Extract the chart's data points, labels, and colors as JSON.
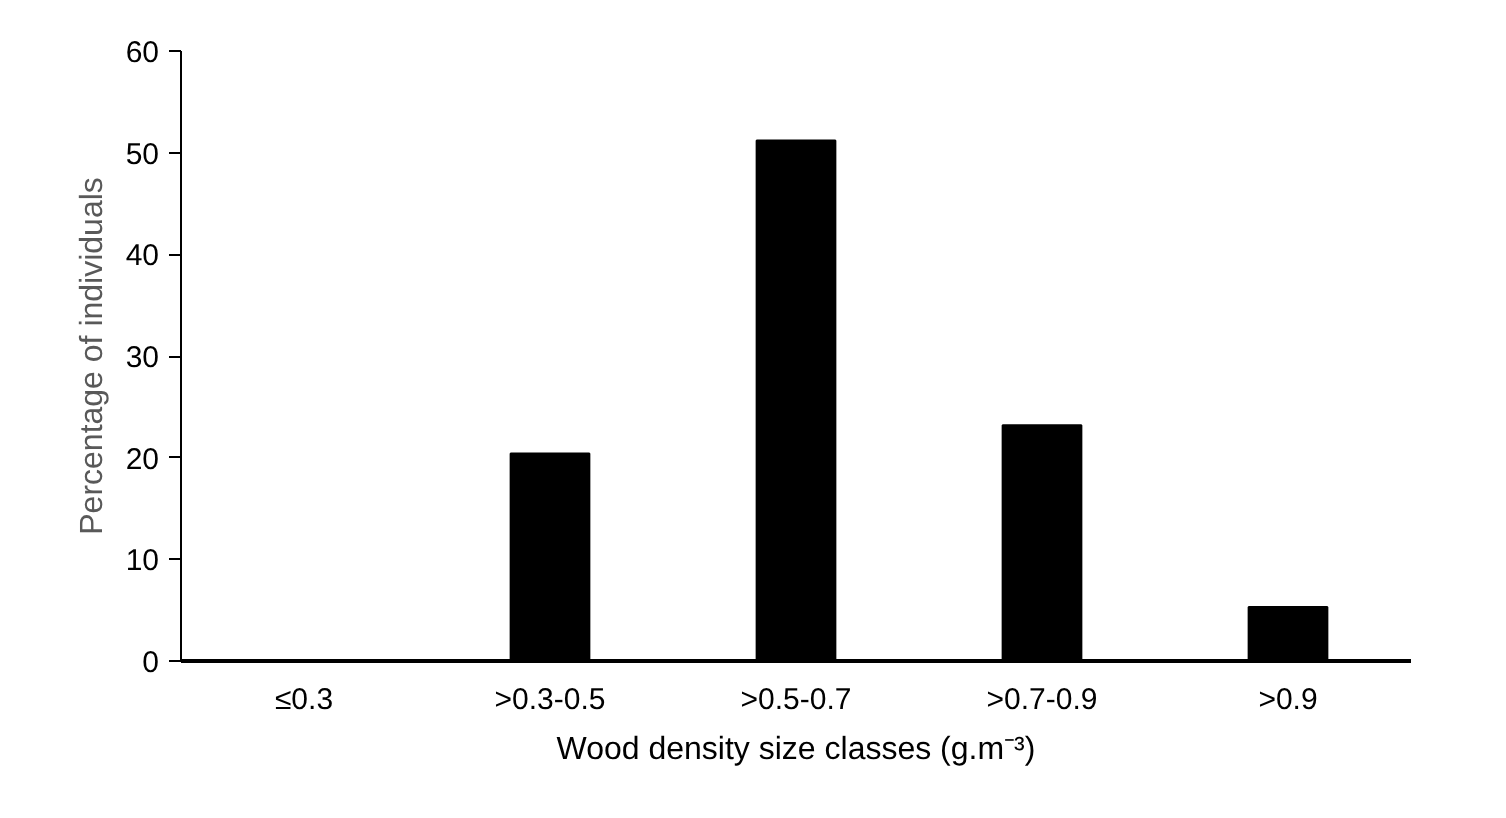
{
  "chart_data": {
    "type": "bar",
    "xlabel": "Wood density size classes (g.m⁻³)",
    "ylabel": "Percentage of individuals",
    "categories": [
      "≤0.3",
      ">0.3-0.5",
      ">0.5-0.7",
      ">0.7-0.9",
      ">0.9"
    ],
    "values": [
      0,
      20.4,
      51.2,
      23.2,
      5.3
    ],
    "color": "#000000",
    "ylim": [
      0,
      60
    ],
    "yticks": [
      0,
      10,
      20,
      30,
      40,
      50,
      60
    ],
    "grid": false
  }
}
